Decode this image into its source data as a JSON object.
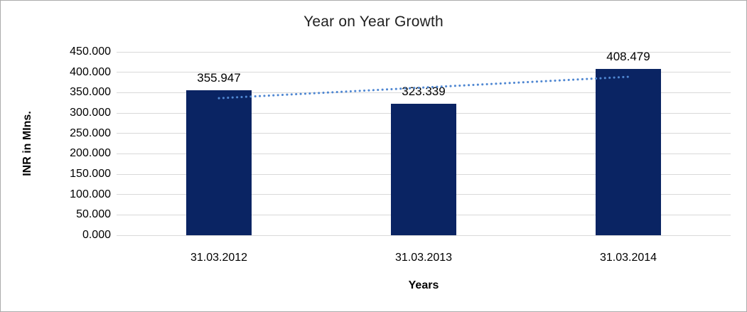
{
  "chart_data": {
    "type": "bar",
    "title": "Year on Year Growth",
    "xlabel": "Years",
    "ylabel": "INR in MIns.",
    "categories": [
      "31.03.2012",
      "31.03.2013",
      "31.03.2014"
    ],
    "values": [
      355.947,
      323.339,
      408.479
    ],
    "data_labels": [
      "355.947",
      "323.339",
      "408.479"
    ],
    "yticks": [
      0,
      50,
      100,
      150,
      200,
      250,
      300,
      350,
      400,
      450
    ],
    "ytick_labels": [
      "0.000",
      "50.000",
      "100.000",
      "150.000",
      "200.000",
      "250.000",
      "300.000",
      "350.000",
      "400.000",
      "450.000"
    ],
    "ylim": [
      0,
      450
    ],
    "grid": "horizontal",
    "legend": "none",
    "colors": {
      "bar": "#0a2463",
      "trendline": "#4f87d2",
      "gridline": "#d9d9d9"
    },
    "trendline": {
      "type": "linear",
      "style": "dotted"
    }
  }
}
